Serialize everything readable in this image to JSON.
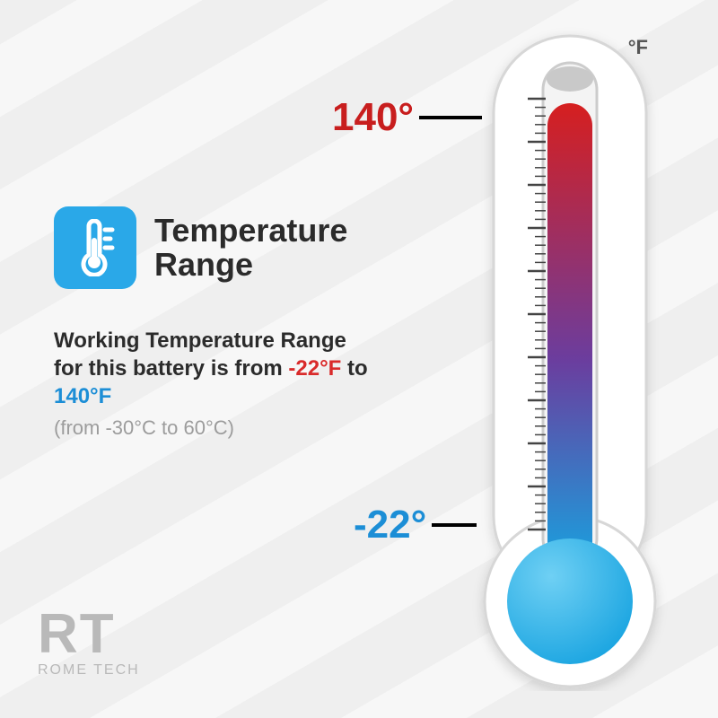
{
  "heading": {
    "line1": "Temperature",
    "line2": "Range"
  },
  "icon": {
    "bg": "#2aa8e8",
    "fg": "#ffffff"
  },
  "description": {
    "prefix": "Working Temperature Range for this battery is from ",
    "low": "-22°F",
    "mid": " to ",
    "high": "140°F",
    "low_color": "#d92b2b",
    "high_color": "#1c8ed6"
  },
  "celsius_note": "(from -30°C to 60°C)",
  "thermometer": {
    "unit_label": "°F",
    "high_label": "140°",
    "low_label": "-22°",
    "high_color": "#c81e1e",
    "low_color": "#1c8ed6",
    "casing_fill": "#ffffff",
    "casing_stroke": "#d7d7d7",
    "tick_color": "#444444",
    "gradient_top": "#d61f1f",
    "gradient_mid": "#6b3d9e",
    "gradient_bottom": "#17a3e0",
    "bulb_fill": "#17a3e0",
    "bulb_highlight": "#6fd0f4"
  },
  "brand": {
    "monogram": "RT",
    "name": "ROME TECH",
    "color": "#b9b9b9"
  }
}
